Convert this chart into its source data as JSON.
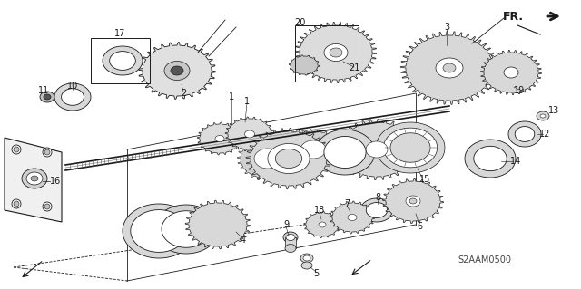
{
  "bg_color": "#ffffff",
  "line_color": "#1a1a1a",
  "fill_light": "#e8e8e8",
  "fill_mid": "#d0d0d0",
  "fill_dark": "#a0a0a0",
  "fill_black": "#333333",
  "diagram_code": "S2AAM0500",
  "fr_text": "FR.",
  "labels": [
    "1",
    "2",
    "3",
    "4",
    "5",
    "6",
    "7",
    "8",
    "9",
    "10",
    "11",
    "12",
    "13",
    "14",
    "15",
    "16",
    "17",
    "18",
    "19",
    "20",
    "21"
  ]
}
